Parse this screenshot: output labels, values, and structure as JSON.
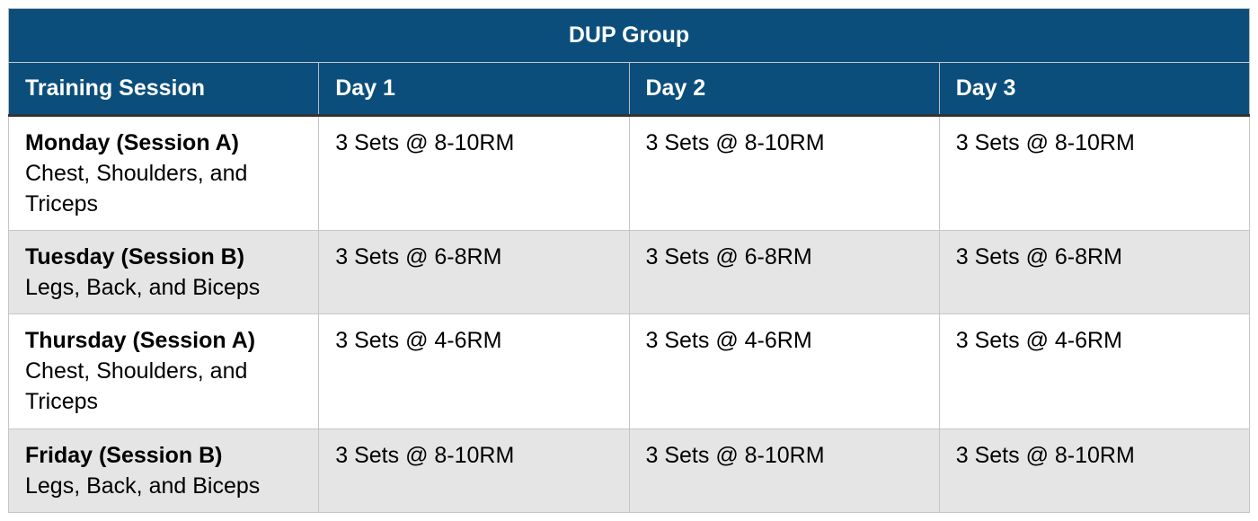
{
  "table": {
    "title": "DUP Group",
    "columns": {
      "session": "Training Session",
      "day1": "Day 1",
      "day2": "Day 2",
      "day3": "Day 3"
    },
    "rows": [
      {
        "session_title": "Monday (Session A)",
        "session_detail": "Chest, Shoulders, and Triceps",
        "day1": "3 Sets @ 8-10RM",
        "day2": "3 Sets @ 8-10RM",
        "day3": "3 Sets @ 8-10RM"
      },
      {
        "session_title": "Tuesday (Session B)",
        "session_detail": "Legs, Back, and Biceps",
        "day1": "3 Sets @ 6-8RM",
        "day2": "3 Sets @ 6-8RM",
        "day3": "3 Sets @ 6-8RM"
      },
      {
        "session_title": "Thursday (Session A)",
        "session_detail": "Chest, Shoulders, and Triceps",
        "day1": "3 Sets @ 4-6RM",
        "day2": "3 Sets @ 4-6RM",
        "day3": "3 Sets @ 4-6RM"
      },
      {
        "session_title": "Friday (Session B)",
        "session_detail": "Legs, Back, and Biceps",
        "day1": "3 Sets @ 8-10RM",
        "day2": "3 Sets @ 8-10RM",
        "day3": "3 Sets @ 8-10RM"
      }
    ],
    "colors": {
      "header_blue": "#0B4E7B",
      "header_underline": "#333333",
      "row_alt_gray": "#e5e5e5"
    }
  }
}
